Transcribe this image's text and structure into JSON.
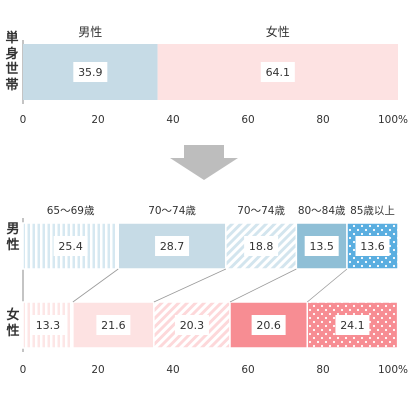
{
  "chart_data": [
    {
      "type": "bar",
      "orientation": "horizontal",
      "stacked": true,
      "ylabel": "単身世帯",
      "series": [
        {
          "name": "男性",
          "values": [
            35.9
          ],
          "color": "#c6dbe6"
        },
        {
          "name": "女性",
          "values": [
            64.1
          ],
          "color": "#fde2e2"
        }
      ],
      "data_labels": [
        "35.9",
        "64.1"
      ],
      "x_ticks": [
        "0",
        "20",
        "40",
        "60",
        "80",
        "100%"
      ],
      "xlim": [
        0,
        100
      ]
    },
    {
      "type": "bar",
      "orientation": "horizontal",
      "stacked": true,
      "categories": [
        "男性",
        "女性"
      ],
      "segment_labels": [
        "65〜69歳",
        "70〜74歳",
        "70〜74歳",
        "80〜84歳",
        "85歳以上"
      ],
      "series": [
        {
          "name": "65〜69歳",
          "values": [
            25.4,
            13.3
          ]
        },
        {
          "name": "70〜74歳",
          "values": [
            28.7,
            21.6
          ]
        },
        {
          "name": "70〜74歳",
          "values": [
            18.8,
            20.3
          ]
        },
        {
          "name": "80〜84歳",
          "values": [
            13.5,
            20.6
          ]
        },
        {
          "name": "85歳以上",
          "values": [
            13.6,
            24.1
          ]
        }
      ],
      "data_labels": [
        [
          "25.4",
          "28.7",
          "18.8",
          "13.5",
          "13.6"
        ],
        [
          "13.3",
          "21.6",
          "20.3",
          "20.6",
          "24.1"
        ]
      ],
      "x_ticks": [
        "0",
        "20",
        "40",
        "60",
        "80",
        "100%"
      ],
      "xlim": [
        0,
        100
      ],
      "colors": {
        "male": [
          "#d0e4ee",
          "#c6dbe6",
          "#c6dbe6",
          "#8fbfd6",
          "#5aaee0"
        ],
        "female": [
          "#fde2e2",
          "#fde2e2",
          "#fde2e2",
          "#f78d93",
          "#f78d93"
        ]
      },
      "patterns": {
        "male": [
          "vstripe",
          "solid",
          "diag",
          "solid",
          "dots"
        ],
        "female": [
          "vstripe",
          "solid",
          "diag",
          "solid",
          "dots"
        ]
      }
    }
  ]
}
